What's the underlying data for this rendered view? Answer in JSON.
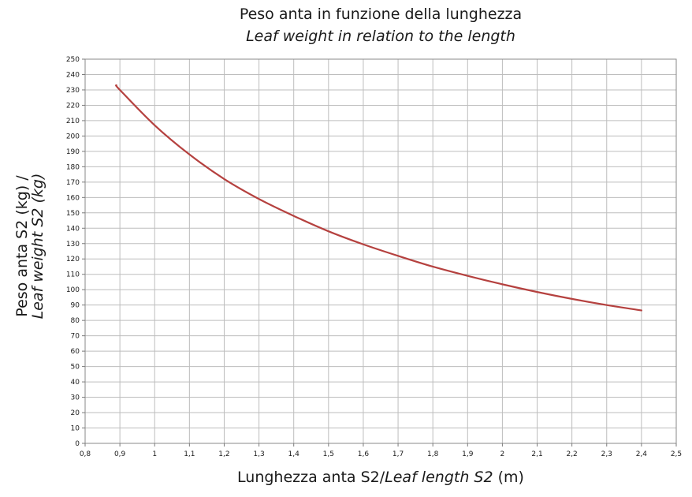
{
  "chart_data": {
    "type": "line",
    "title": "Peso anta in funzione della lunghezza",
    "subtitle": "Leaf weight in relation to the length",
    "xlabel": {
      "main": "Lunghezza anta S2/",
      "italic": "Leaf length S2",
      "unit": "(m)"
    },
    "ylabel": {
      "line1": "Peso anta S2 (kg) /",
      "line2": "Leaf weight S2 (kg)"
    },
    "xlim": [
      0.8,
      2.5
    ],
    "ylim": [
      0,
      250
    ],
    "grid": true,
    "x_ticks": [
      "0,8",
      "0,9",
      "1",
      "1,1",
      "1,2",
      "1,3",
      "1,4",
      "1,5",
      "1,6",
      "1,7",
      "1,8",
      "1,9",
      "2",
      "2,1",
      "2,2",
      "2,3",
      "2,4",
      "2,5"
    ],
    "y_ticks": [
      "0",
      "10",
      "20",
      "30",
      "40",
      "50",
      "60",
      "70",
      "80",
      "90",
      "100",
      "110",
      "120",
      "130",
      "140",
      "150",
      "160",
      "170",
      "180",
      "190",
      "200",
      "210",
      "220",
      "230",
      "240",
      "250"
    ],
    "series": [
      {
        "color": "#b5413f",
        "x": [
          0.89,
          0.9,
          1.0,
          1.1,
          1.2,
          1.3,
          1.4,
          1.5,
          1.6,
          1.7,
          1.8,
          1.9,
          2.0,
          2.1,
          2.2,
          2.3,
          2.4
        ],
        "y": [
          233,
          230,
          207,
          188,
          172,
          159,
          148,
          138,
          129.5,
          122,
          115,
          109,
          103.5,
          98.5,
          94,
          90,
          86.5
        ]
      }
    ]
  }
}
